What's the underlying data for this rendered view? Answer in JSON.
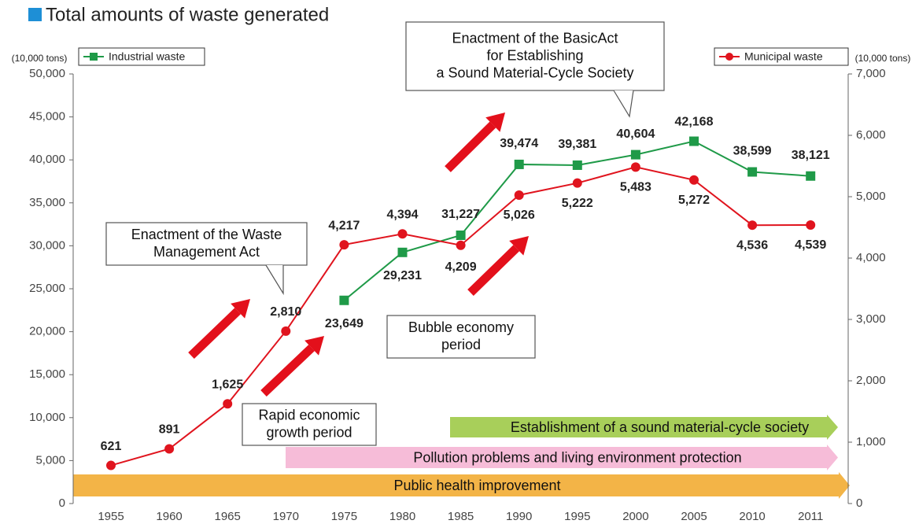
{
  "chart_data": {
    "type": "line",
    "title": "Total amounts of waste generated",
    "y_axis_label": "(10,000 tons)",
    "y2_axis_label": "(10,000 tons)",
    "categories": [
      "1955",
      "1960",
      "1965",
      "1970",
      "1975",
      "1980",
      "1985",
      "1990",
      "1995",
      "2000",
      "2005",
      "2010",
      "2011"
    ],
    "series": [
      {
        "name": "Industrial waste",
        "color": "#1f9a48",
        "marker": "square",
        "values": [
          null,
          null,
          null,
          null,
          23649,
          29231,
          31227,
          39474,
          39381,
          40604,
          42168,
          38599,
          38121
        ],
        "value_labels": [
          null,
          null,
          null,
          null,
          "23,649",
          "29,231",
          "31,227",
          "39,474",
          "39,381",
          "40,604",
          "42,168",
          "38,599",
          "38,121"
        ]
      },
      {
        "name": "Municipal waste",
        "color": "#e0141e",
        "marker": "circle",
        "axis": "y2",
        "values": [
          621,
          891,
          1625,
          2810,
          4217,
          4394,
          4209,
          5026,
          5222,
          5483,
          5272,
          4536,
          4539
        ],
        "value_labels": [
          "621",
          "891",
          "1,625",
          "2,810",
          "4,217",
          "4,394",
          "4,209",
          "5,026",
          "5,222",
          "5,483",
          "5,272",
          "4,536",
          "4,539"
        ]
      }
    ],
    "ylim": [
      0,
      50000
    ],
    "yticks": [
      0,
      {
        "value": 5000,
        "label": "5,000"
      },
      {
        "value": 10000,
        "label": "10,000"
      },
      {
        "value": 15000,
        "label": "15,000"
      },
      {
        "value": 20000,
        "label": "20,000"
      },
      {
        "value": 25000,
        "label": "25,000"
      },
      {
        "value": 30000,
        "label": "30,000"
      },
      {
        "value": 35000,
        "label": "35,000"
      },
      {
        "value": 40000,
        "label": "40,000"
      },
      {
        "value": 45000,
        "label": "45,000"
      },
      {
        "value": 50000,
        "label": "50,000"
      }
    ],
    "y2lim": [
      0,
      7000
    ],
    "y2ticks": [
      0,
      {
        "value": 1000,
        "label": "1,000"
      },
      {
        "value": 2000,
        "label": "2,000"
      },
      {
        "value": 3000,
        "label": "3,000"
      },
      {
        "value": 4000,
        "label": "4,000"
      },
      {
        "value": 5000,
        "label": "5,000"
      },
      {
        "value": 6000,
        "label": "6,000"
      },
      {
        "value": 7000,
        "label": "7,000"
      }
    ],
    "annotations": [
      {
        "lines": [
          "Enactment of the BasicAct",
          "for Establishing",
          "a Sound Material-Cycle Society"
        ]
      },
      {
        "lines": [
          "Enactment of the Waste",
          "Management Act"
        ]
      },
      {
        "lines": [
          "Bubble economy",
          "period"
        ]
      },
      {
        "lines": [
          "Rapid economic",
          "growth period"
        ]
      }
    ],
    "period_bands": [
      {
        "text": "Establishment of a sound material-cycle society",
        "color": "#a8cf5a"
      },
      {
        "text": "Pollution problems and living environment protection",
        "color": "#f6bcd8"
      },
      {
        "text": "Public health improvement",
        "color": "#f3b447"
      }
    ]
  }
}
